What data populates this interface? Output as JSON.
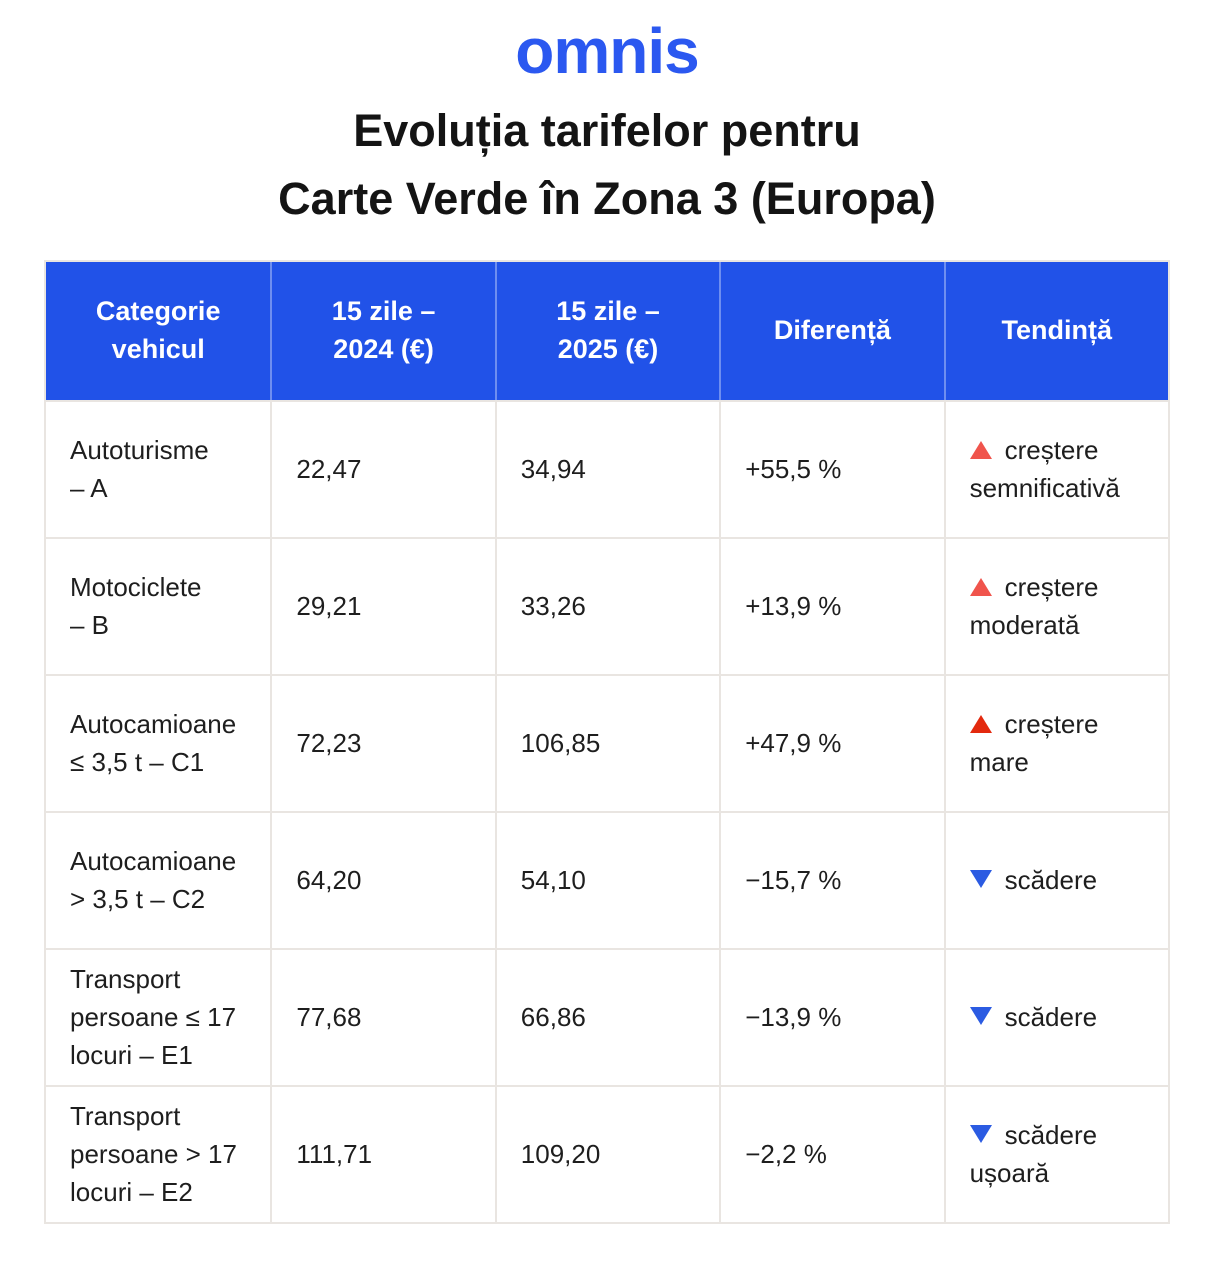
{
  "logo": "omnis",
  "title_line1": "Evoluția tarifelor pentru",
  "title_line2": "Carte Verde în Zona 3 (Europa)",
  "colors": {
    "brand_blue": "#2B58F0",
    "header_blue": "#2152E8",
    "up_red": "#F0544C",
    "up_red_strong": "#E3290E",
    "down_blue": "#2B5BE2"
  },
  "table": {
    "headers": {
      "category": "Categorie\nvehicul",
      "y2024": "15 zile –\n2024 (€)",
      "y2025": "15 zile –\n2025 (€)",
      "diff": "Diferență",
      "trend": "Tendință"
    },
    "rows": [
      {
        "category": "Autoturisme\n– A",
        "y2024": "22,47",
        "y2025": "34,94",
        "diff": "+55,5 %",
        "trend": "creștere\nsemnificativă",
        "trend_dir": "up"
      },
      {
        "category": "Motociclete\n– B",
        "y2024": "29,21",
        "y2025": "33,26",
        "diff": "+13,9 %",
        "trend": "creștere\nmoderată",
        "trend_dir": "up"
      },
      {
        "category": "Autocamioane\n≤ 3,5 t – C1",
        "y2024": "72,23",
        "y2025": "106,85",
        "diff": "+47,9 %",
        "trend": "creștere\nmare",
        "trend_dir": "up-strong"
      },
      {
        "category": "Autocamioane\n> 3,5 t – C2",
        "y2024": "64,20",
        "y2025": "54,10",
        "diff": "−15,7 %",
        "trend": "scădere",
        "trend_dir": "down"
      },
      {
        "category": "Transport\npersoane ≤ 17\nlocuri – E1",
        "y2024": "77,68",
        "y2025": "66,86",
        "diff": "−13,9 %",
        "trend": "scădere",
        "trend_dir": "down"
      },
      {
        "category": "Transport\npersoane > 17\nlocuri – E2",
        "y2024": "111,71",
        "y2025": "109,20",
        "diff": "−2,2 %",
        "trend": "scădere\nușoară",
        "trend_dir": "down"
      }
    ]
  },
  "chart_data": {
    "type": "table",
    "title": "Evoluția tarifelor pentru Carte Verde în Zona 3 (Europa)",
    "columns": [
      "Categorie vehicul",
      "15 zile – 2024 (€)",
      "15 zile – 2025 (€)",
      "Diferență",
      "Tendință"
    ],
    "rows": [
      [
        "Autoturisme – A",
        22.47,
        34.94,
        "+55,5 %",
        "creștere semnificativă"
      ],
      [
        "Motociclete – B",
        29.21,
        33.26,
        "+13,9 %",
        "creștere moderată"
      ],
      [
        "Autocamioane ≤ 3,5 t – C1",
        72.23,
        106.85,
        "+47,9 %",
        "creștere mare"
      ],
      [
        "Autocamioane > 3,5 t – C2",
        64.2,
        54.1,
        "−15,7 %",
        "scădere"
      ],
      [
        "Transport persoane ≤ 17 locuri – E1",
        77.68,
        66.86,
        "−13,9 %",
        "scădere"
      ],
      [
        "Transport persoane > 17 locuri – E2",
        111.71,
        109.2,
        "−2,2 %",
        "scădere ușoară"
      ]
    ]
  }
}
